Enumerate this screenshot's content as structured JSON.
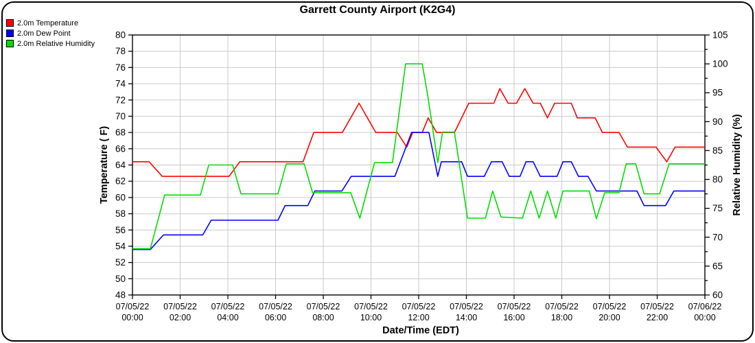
{
  "title": "Garrett County Airport (K2G4)",
  "legend": {
    "items": [
      {
        "label": "2.0m Temperature",
        "color": "#ff0000"
      },
      {
        "label": "2.0m Dew Point",
        "color": "#0000ff"
      },
      {
        "label": "2.0m Relative Humidity",
        "color": "#00dd00"
      }
    ]
  },
  "chart_data": {
    "type": "line",
    "title": "Garrett County Airport (K2G4)",
    "grid": true,
    "legend_position": "top-left",
    "grid_color": "#c9c9c9",
    "x_axis": {
      "label": "Date/Time (EDT)",
      "min": 0,
      "max": 24,
      "tick_hours": 2,
      "tick_labels": [
        {
          "date": "07/05/22",
          "time": "00:00"
        },
        {
          "date": "07/05/22",
          "time": "02:00"
        },
        {
          "date": "07/05/22",
          "time": "04:00"
        },
        {
          "date": "07/05/22",
          "time": "06:00"
        },
        {
          "date": "07/05/22",
          "time": "08:00"
        },
        {
          "date": "07/05/22",
          "time": "10:00"
        },
        {
          "date": "07/05/22",
          "time": "12:00"
        },
        {
          "date": "07/05/22",
          "time": "14:00"
        },
        {
          "date": "07/05/22",
          "time": "16:00"
        },
        {
          "date": "07/05/22",
          "time": "18:00"
        },
        {
          "date": "07/05/22",
          "time": "20:00"
        },
        {
          "date": "07/05/22",
          "time": "22:00"
        },
        {
          "date": "07/06/22",
          "time": "00:00"
        }
      ]
    },
    "temp_axis": {
      "label": "Temperature ( F)",
      "min": 48,
      "max": 80,
      "tick": 2
    },
    "rh_axis": {
      "label": "Relative Humidity (%)",
      "min": 60,
      "max": 105,
      "tick": 5,
      "minor_tick": 2.5
    },
    "series": [
      {
        "name": "2.0m Temperature",
        "id": "temperature-line",
        "color": "#ff0000",
        "axis": "temp",
        "units": "F",
        "points": [
          [
            0,
            64.4
          ],
          [
            0.7,
            64.4
          ],
          [
            1.25,
            62.6
          ],
          [
            4.05,
            62.6
          ],
          [
            4.5,
            64.4
          ],
          [
            7.15,
            64.4
          ],
          [
            7.6,
            68
          ],
          [
            8.8,
            68
          ],
          [
            9.5,
            71.6
          ],
          [
            10.2,
            68
          ],
          [
            11.1,
            68
          ],
          [
            11.5,
            66.2
          ],
          [
            11.75,
            68
          ],
          [
            12.15,
            68
          ],
          [
            12.4,
            69.8
          ],
          [
            12.75,
            68
          ],
          [
            13.5,
            68
          ],
          [
            14.1,
            71.6
          ],
          [
            15.15,
            71.6
          ],
          [
            15.4,
            73.4
          ],
          [
            15.75,
            71.6
          ],
          [
            16.1,
            71.6
          ],
          [
            16.45,
            73.4
          ],
          [
            16.8,
            71.6
          ],
          [
            17.1,
            71.6
          ],
          [
            17.4,
            69.8
          ],
          [
            17.7,
            71.6
          ],
          [
            18.4,
            71.6
          ],
          [
            18.65,
            69.8
          ],
          [
            19.4,
            69.8
          ],
          [
            19.7,
            68
          ],
          [
            20.4,
            68
          ],
          [
            20.75,
            66.2
          ],
          [
            21.95,
            66.2
          ],
          [
            22.4,
            64.4
          ],
          [
            22.75,
            66.2
          ],
          [
            24,
            66.2
          ]
        ]
      },
      {
        "name": "2.0m Dew Point",
        "id": "dew-point-line",
        "color": "#0000ff",
        "axis": "temp",
        "units": "F",
        "points": [
          [
            0,
            53.6
          ],
          [
            0.75,
            53.6
          ],
          [
            1.3,
            55.4
          ],
          [
            2.95,
            55.4
          ],
          [
            3.3,
            57.2
          ],
          [
            6.1,
            57.2
          ],
          [
            6.4,
            59
          ],
          [
            7.35,
            59
          ],
          [
            7.65,
            60.8
          ],
          [
            8.78,
            60.8
          ],
          [
            9.17,
            62.6
          ],
          [
            11.0,
            62.6
          ],
          [
            11.7,
            68
          ],
          [
            12.43,
            68
          ],
          [
            12.8,
            62.6
          ],
          [
            12.95,
            64.4
          ],
          [
            13.8,
            64.4
          ],
          [
            14.05,
            62.6
          ],
          [
            14.75,
            62.6
          ],
          [
            15.05,
            64.4
          ],
          [
            15.5,
            64.4
          ],
          [
            15.8,
            62.6
          ],
          [
            16.25,
            62.6
          ],
          [
            16.5,
            64.4
          ],
          [
            16.8,
            64.4
          ],
          [
            17.1,
            62.6
          ],
          [
            17.8,
            62.6
          ],
          [
            18.05,
            64.4
          ],
          [
            18.4,
            64.4
          ],
          [
            18.7,
            62.6
          ],
          [
            19.1,
            62.6
          ],
          [
            19.45,
            60.8
          ],
          [
            21.15,
            60.8
          ],
          [
            21.45,
            59
          ],
          [
            22.35,
            59
          ],
          [
            22.7,
            60.8
          ],
          [
            24,
            60.8
          ]
        ]
      },
      {
        "name": "2.0m Relative Humidity",
        "id": "relative-humidity-line",
        "color": "#00dd00",
        "axis": "rh",
        "units": "%",
        "points": [
          [
            0,
            68
          ],
          [
            0.75,
            68
          ],
          [
            1.35,
            77.3
          ],
          [
            2.85,
            77.3
          ],
          [
            3.2,
            82.5
          ],
          [
            4.2,
            82.5
          ],
          [
            4.55,
            77.5
          ],
          [
            6.1,
            77.5
          ],
          [
            6.45,
            82.7
          ],
          [
            7.2,
            82.7
          ],
          [
            7.55,
            77.7
          ],
          [
            8.85,
            77.7
          ],
          [
            9.15,
            77.7
          ],
          [
            9.53,
            73.3
          ],
          [
            10.15,
            82.9
          ],
          [
            10.9,
            82.9
          ],
          [
            11.45,
            100
          ],
          [
            12.15,
            100
          ],
          [
            12.4,
            94
          ],
          [
            12.8,
            82.9
          ],
          [
            13.0,
            88.2
          ],
          [
            13.5,
            88.2
          ],
          [
            14.05,
            73.3
          ],
          [
            14.8,
            73.3
          ],
          [
            15.1,
            78
          ],
          [
            15.45,
            73.5
          ],
          [
            16.35,
            73.3
          ],
          [
            16.7,
            78
          ],
          [
            17.05,
            73.3
          ],
          [
            17.4,
            78
          ],
          [
            17.75,
            73.3
          ],
          [
            18.05,
            78
          ],
          [
            19.15,
            78
          ],
          [
            19.45,
            73.2
          ],
          [
            19.8,
            77.7
          ],
          [
            20.4,
            77.7
          ],
          [
            20.7,
            82.7
          ],
          [
            21.1,
            82.7
          ],
          [
            21.45,
            77.5
          ],
          [
            22.1,
            77.5
          ],
          [
            22.5,
            82.7
          ],
          [
            24,
            82.7
          ]
        ]
      }
    ]
  }
}
